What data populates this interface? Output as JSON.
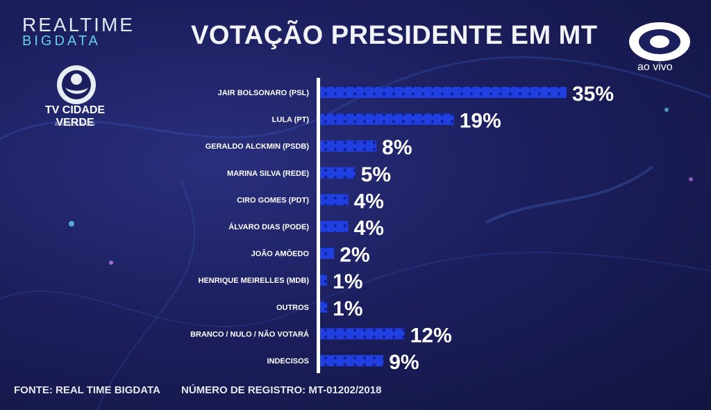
{
  "brand": {
    "line1": "REALTIME",
    "line2": "BIGDATA"
  },
  "tv": {
    "name": "TV CIDADE VERDE",
    "sub": "AFILIADA BAND"
  },
  "title": "VOTAÇÃO PRESIDENTE EM MT",
  "band": {
    "live_label": "ao vivo"
  },
  "footer": {
    "source": "FONTE: REAL TIME BIGDATA",
    "registration": "NÚMERO DE REGISTRO: MT-01202/2018"
  },
  "colors": {
    "bar": "#1f3fe0",
    "bar_dot": "#0b1a8a",
    "axis": "#ffffff"
  },
  "chart_data": {
    "type": "bar",
    "orientation": "horizontal",
    "title": "VOTAÇÃO PRESIDENTE EM MT",
    "categories": [
      "JAIR BOLSONARO (PSL)",
      "LULA (PT)",
      "GERALDO ALCKMIN (PSDB)",
      "MARINA SILVA (REDE)",
      "CIRO GOMES (PDT)",
      "ÁLVARO DIAS (PODE)",
      "JOÃO AMÔEDO",
      "HENRIQUE MEIRELLES (MDB)",
      "OUTROS",
      "BRANCO / NULO / NÃO VOTARÁ",
      "INDECISOS"
    ],
    "values": [
      35,
      19,
      8,
      5,
      4,
      4,
      2,
      1,
      1,
      12,
      9
    ],
    "value_labels": [
      "35%",
      "19%",
      "8%",
      "5%",
      "4%",
      "4%",
      "2%",
      "1%",
      "1%",
      "12%",
      "9%"
    ],
    "unit": "%",
    "xlim": [
      0,
      35
    ],
    "grid": false,
    "legend": "none"
  }
}
